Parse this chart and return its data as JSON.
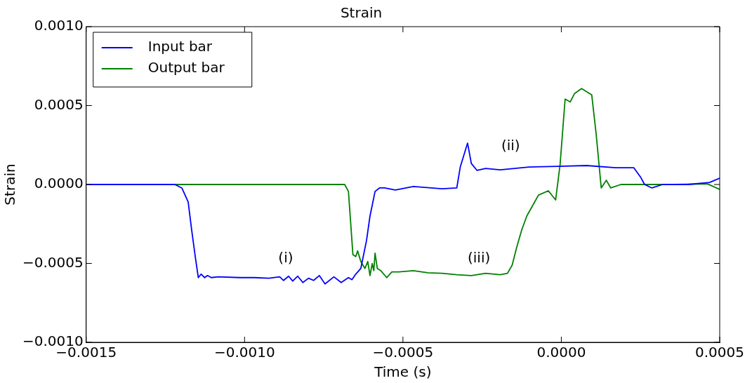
{
  "chart_data": {
    "type": "line",
    "title": "Strain",
    "xlabel": "Time (s)",
    "ylabel": "Strain",
    "xlim": [
      -0.0015,
      0.0005
    ],
    "ylim": [
      -0.001,
      0.001
    ],
    "xticks": [
      {
        "value": -0.0015,
        "label": "−0.0015"
      },
      {
        "value": -0.001,
        "label": "−0.0010"
      },
      {
        "value": -0.0005,
        "label": "−0.0005"
      },
      {
        "value": 0,
        "label": "0.0000"
      },
      {
        "value": 0.0005,
        "label": "0.0005"
      }
    ],
    "yticks": [
      {
        "value": -0.001,
        "label": "−0.0010"
      },
      {
        "value": -0.0005,
        "label": "−0.0005"
      },
      {
        "value": 0,
        "label": "0.0000"
      },
      {
        "value": 0.0005,
        "label": "0.0005"
      },
      {
        "value": 0.001,
        "label": "0.0010"
      }
    ],
    "grid": false,
    "legend": "top left",
    "marker": "none",
    "line_style": "solid",
    "annotations": [
      "(i)",
      "(ii)",
      "(iii)"
    ],
    "series": [
      {
        "name": "Input bar",
        "color": "#0000ff",
        "x": [
          -0.0015,
          -0.00122,
          -0.001198,
          -0.001178,
          -0.001167,
          -0.001155,
          -0.001146,
          -0.001137,
          -0.001126,
          -0.001117,
          -0.001105,
          -0.001083,
          -0.001014,
          -0.000969,
          -0.000923,
          -0.000889,
          -0.000877,
          -0.000861,
          -0.000848,
          -0.000832,
          -0.000816,
          -0.000798,
          -0.000782,
          -0.000764,
          -0.000746,
          -0.000718,
          -0.000695,
          -0.000672,
          -0.000661,
          -0.000649,
          -0.000633,
          -0.000615,
          -0.000604,
          -0.000588,
          -0.000574,
          -0.000558,
          -0.000524,
          -0.000467,
          -0.000376,
          -0.00033,
          -0.000319,
          -0.000296,
          -0.000284,
          -0.000266,
          -0.000239,
          -0.000193,
          -0.000148,
          -0.000102,
          -1.1e-05,
          8e-05,
          0.000172,
          0.000229,
          0.000251,
          0.000263,
          0.000286,
          0.00032,
          0.0004,
          0.000468,
          0.0005
        ],
        "values": [
          0,
          0,
          -2.2e-05,
          -0.000111,
          -0.000288,
          -0.000466,
          -0.00059,
          -0.000568,
          -0.00059,
          -0.000577,
          -0.00059,
          -0.000585,
          -0.00059,
          -0.00059,
          -0.000594,
          -0.000585,
          -0.000608,
          -0.000581,
          -0.000612,
          -0.000581,
          -0.000621,
          -0.000594,
          -0.000608,
          -0.000577,
          -0.00063,
          -0.000585,
          -0.000621,
          -0.00059,
          -0.000603,
          -0.000568,
          -0.000532,
          -0.000355,
          -0.0002,
          -4.4e-05,
          -2.2e-05,
          -2.2e-05,
          -3.5e-05,
          -1.3e-05,
          -2.7e-05,
          -2.2e-05,
          0.000111,
          0.000262,
          0.000133,
          8.9e-05,
          0.000102,
          9.3e-05,
          0.000102,
          0.000111,
          0.000115,
          0.00012,
          0.000106,
          0.000106,
          4.4e-05,
          0,
          -2.2e-05,
          0,
          0,
          1.3e-05,
          4e-05
        ]
      },
      {
        "name": "Output bar",
        "color": "#008000",
        "x": [
          -0.0015,
          -0.000684,
          -0.000672,
          -0.000665,
          -0.000658,
          -0.000649,
          -0.000643,
          -0.000633,
          -0.00062,
          -0.000611,
          -0.000604,
          -0.000597,
          -0.000592,
          -0.000588,
          -0.000581,
          -0.00057,
          -0.000551,
          -0.000535,
          -0.000513,
          -0.000467,
          -0.000421,
          -0.000376,
          -0.00033,
          -0.000284,
          -0.000239,
          -0.000193,
          -0.00017,
          -0.000155,
          -0.000141,
          -0.000125,
          -0.000109,
          -7.2e-05,
          -4.1e-05,
          -1.8e-05,
          -4e-06,
          1.2e-05,
          2.8e-05,
          4.2e-05,
          6.4e-05,
          9.6e-05,
          0.00011,
          0.000126,
          0.000142,
          0.000156,
          0.000188,
          0.000263,
          0.000354,
          0.000461,
          0.0005
        ],
        "values": [
          0,
          0,
          -4.4e-05,
          -0.000244,
          -0.000444,
          -0.000457,
          -0.000421,
          -0.000488,
          -0.000532,
          -0.000488,
          -0.000577,
          -0.000501,
          -0.000546,
          -0.000435,
          -0.000532,
          -0.000546,
          -0.00059,
          -0.000554,
          -0.000554,
          -0.000546,
          -0.000559,
          -0.000563,
          -0.000572,
          -0.000577,
          -0.000563,
          -0.000572,
          -0.000563,
          -0.00051,
          -0.000399,
          -0.000288,
          -0.0002,
          -6.7e-05,
          -4e-05,
          -9.8e-05,
          0.000124,
          0.000541,
          0.000523,
          0.000577,
          0.000608,
          0.000568,
          0.000319,
          -2.2e-05,
          2.7e-05,
          -2.2e-05,
          0,
          0,
          0,
          4e-06,
          -3.1e-05
        ]
      }
    ]
  }
}
